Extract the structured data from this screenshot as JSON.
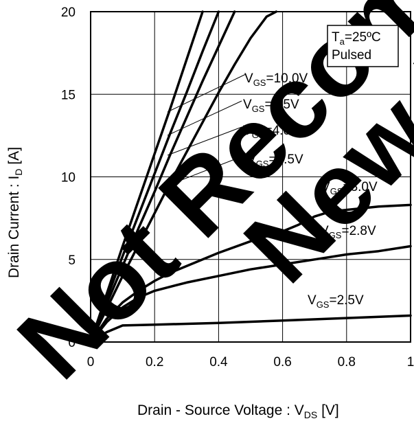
{
  "chart_data": {
    "type": "line",
    "title": "",
    "xlabel": {
      "main": "Drain - Source Voltage : V",
      "sub": "DS",
      "tail": " [V]"
    },
    "ylabel": {
      "main": "Drain Current : I",
      "sub": "D",
      "tail": " [A]"
    },
    "xlim": [
      0,
      1
    ],
    "ylim": [
      0,
      20
    ],
    "xticks": [
      0,
      0.2,
      0.4,
      0.6,
      0.8,
      1
    ],
    "xtick_labels": [
      "0",
      "0.2",
      "0.4",
      "0.6",
      "0.8",
      "1"
    ],
    "yticks": [
      0,
      5,
      10,
      15,
      20
    ],
    "ytick_labels": [
      "0",
      "5",
      "10",
      "15",
      "20"
    ],
    "grid": true,
    "condition_box": {
      "ta_main": "T",
      "ta_sub": "a",
      "ta_tail": "=25ºC",
      "line2": "Pulsed"
    },
    "series": [
      {
        "main": "V",
        "sub": "GS",
        "tail": "=10.0V",
        "x": [
          0,
          0.05,
          0.1,
          0.15,
          0.2,
          0.25,
          0.3,
          0.35
        ],
        "y": [
          0,
          2.9,
          5.8,
          8.6,
          11.4,
          14.2,
          17.1,
          20
        ]
      },
      {
        "main": "V",
        "sub": "GS",
        "tail": "=4.5V",
        "x": [
          0,
          0.05,
          0.1,
          0.15,
          0.2,
          0.25,
          0.3,
          0.35,
          0.4
        ],
        "y": [
          0,
          2.6,
          5.2,
          7.7,
          10.2,
          12.7,
          15.1,
          17.6,
          20
        ]
      },
      {
        "main": "V",
        "sub": "GS",
        "tail": "=4.0V",
        "x": [
          0,
          0.05,
          0.1,
          0.15,
          0.2,
          0.25,
          0.3,
          0.35,
          0.4,
          0.45
        ],
        "y": [
          0,
          2.3,
          4.6,
          6.9,
          9.1,
          11.4,
          13.6,
          15.8,
          17.9,
          20
        ]
      },
      {
        "main": "V",
        "sub": "GS",
        "tail": "=3.5V",
        "x": [
          0,
          0.05,
          0.1,
          0.15,
          0.2,
          0.25,
          0.3,
          0.35,
          0.4,
          0.45,
          0.5,
          0.55,
          0.58
        ],
        "y": [
          0,
          2.0,
          4.0,
          5.9,
          7.8,
          9.7,
          11.5,
          13.3,
          15.1,
          16.8,
          18.4,
          19.7,
          20
        ]
      },
      {
        "main": "V",
        "sub": "GS",
        "tail": "=3.0V",
        "x": [
          0,
          0.05,
          0.1,
          0.15,
          0.2,
          0.25,
          0.3,
          0.4,
          0.5,
          0.6,
          0.65,
          0.7,
          0.75,
          0.8,
          0.9,
          1.0
        ],
        "y": [
          0,
          1.4,
          2.4,
          3.1,
          3.7,
          4.2,
          4.6,
          5.4,
          6.1,
          6.7,
          7.1,
          7.6,
          7.9,
          8.0,
          8.2,
          8.3
        ]
      },
      {
        "main": "V",
        "sub": "GS",
        "tail": "=2.8V",
        "x": [
          0,
          0.05,
          0.1,
          0.15,
          0.2,
          0.3,
          0.4,
          0.5,
          0.6,
          0.7,
          0.8,
          0.9,
          1.0
        ],
        "y": [
          0,
          1.2,
          2.1,
          2.7,
          3.1,
          3.6,
          4.0,
          4.4,
          4.7,
          5.0,
          5.3,
          5.5,
          5.8
        ]
      },
      {
        "main": "V",
        "sub": "GS",
        "tail": "=2.5V",
        "x": [
          0,
          0.05,
          0.1,
          0.2,
          0.4,
          0.6,
          0.8,
          1.0
        ],
        "y": [
          0,
          0.6,
          1.0,
          1.05,
          1.15,
          1.3,
          1.45,
          1.6
        ]
      }
    ]
  },
  "watermark": {
    "line1": "Not Recommended",
    "line2": "New Design"
  }
}
